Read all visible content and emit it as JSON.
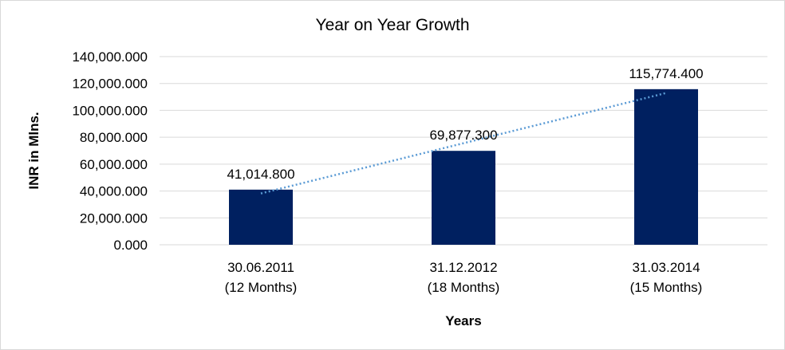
{
  "chart_data": {
    "type": "bar",
    "title": "Year on Year Growth",
    "xlabel": "Years",
    "ylabel": "INR in Mlns.",
    "categories": [
      [
        "30.06.2011",
        "(12 Months)"
      ],
      [
        "31.12.2012",
        "(18 Months)"
      ],
      [
        "31.03.2014",
        "(15 Months)"
      ]
    ],
    "values": [
      41014.8,
      69877.3,
      115774.4
    ],
    "data_labels": [
      "41,014.800",
      "69,877.300",
      "115,774.400"
    ],
    "ylim": [
      0,
      140000
    ],
    "yticks": [
      0,
      20000,
      40000,
      60000,
      80000,
      100000,
      120000,
      140000
    ],
    "ytick_labels": [
      "0.000",
      "20,000.000",
      "40,000.000",
      "60,000.000",
      "80,000.000",
      "100,000.000",
      "120,000.000",
      "140,000.000"
    ],
    "grid": true,
    "trendline": "linear, dotted",
    "colors": {
      "bar": "#002060",
      "trendline": "#5b9bd5",
      "grid": "#d9d9d9"
    }
  }
}
